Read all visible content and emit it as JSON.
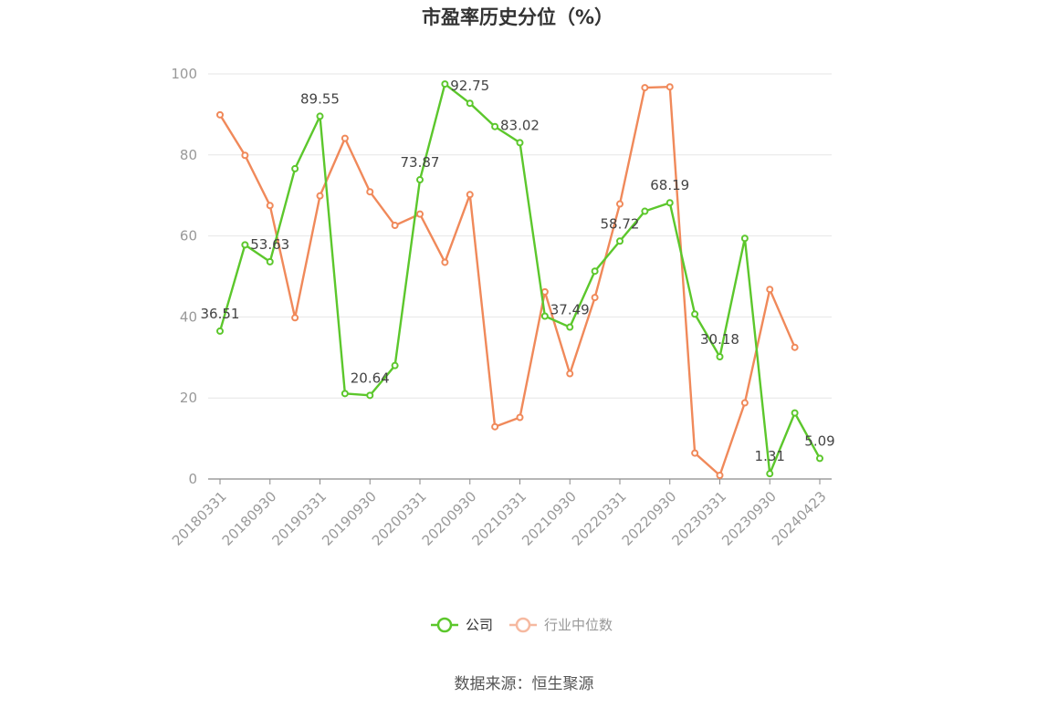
{
  "chart_data": {
    "type": "line",
    "title": "市盈率历史分位（%）",
    "xlabel": "",
    "ylabel": "",
    "ylim": [
      0,
      100
    ],
    "yticks": [
      0,
      20,
      40,
      60,
      80,
      100
    ],
    "grid": true,
    "legend_position": "bottom",
    "x": [
      "20180331",
      "20180630",
      "20180930",
      "20181231",
      "20190331",
      "20190630",
      "20190930",
      "20191231",
      "20200331",
      "20200630",
      "20200930",
      "20201231",
      "20210331",
      "20210630",
      "20210930",
      "20211231",
      "20220331",
      "20220630",
      "20220930",
      "20221231",
      "20230331",
      "20230630",
      "20230930",
      "20231231",
      "20240423"
    ],
    "xtick_labels": [
      "20180331",
      "20180930",
      "20190331",
      "20190930",
      "20200331",
      "20200930",
      "20210331",
      "20210930",
      "20220331",
      "20220930",
      "20230331",
      "20230930",
      "20240423"
    ],
    "series": [
      {
        "name": "公司",
        "color": "#5cc72c",
        "values": [
          36.51,
          57.8,
          53.63,
          76.6,
          89.55,
          21.1,
          20.64,
          28.0,
          73.87,
          97.5,
          92.75,
          87.0,
          83.02,
          40.2,
          37.49,
          51.3,
          58.72,
          66.1,
          68.19,
          40.7,
          30.18,
          59.4,
          1.31,
          16.3,
          5.09
        ],
        "labels": [
          "36.51",
          null,
          "53.63",
          null,
          "89.55",
          null,
          "20.64",
          null,
          "73.87",
          null,
          "92.75",
          null,
          "83.02",
          null,
          "37.49",
          null,
          "58.72",
          null,
          "68.19",
          null,
          "30.18",
          null,
          "1.31",
          null,
          "5.09"
        ]
      },
      {
        "name": "行业中位数",
        "color": "#f0895a",
        "legend_color": "#f6b9a0",
        "values": [
          89.9,
          79.9,
          67.5,
          39.8,
          69.9,
          84.1,
          70.9,
          62.6,
          65.4,
          53.5,
          70.2,
          12.9,
          15.2,
          46.2,
          26.0,
          44.8,
          67.9,
          96.6,
          96.8,
          6.4,
          0.9,
          18.8,
          46.8,
          32.5,
          null
        ]
      }
    ]
  },
  "footer": {
    "source": "数据来源：恒生聚源"
  }
}
